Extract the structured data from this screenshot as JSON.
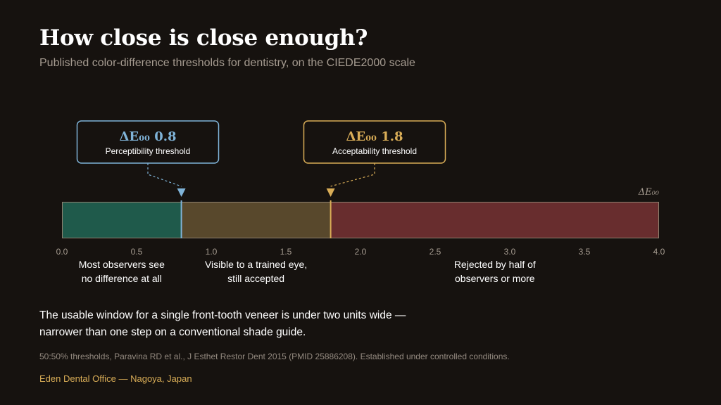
{
  "title": "How close is close enough?",
  "subtitle": "Published color-difference thresholds for dentistry, on the CIEDE2000 scale",
  "chart_data": {
    "type": "bar",
    "orientation": "horizontal-range",
    "axis_label": "ΔE₀₀",
    "xlim": [
      0,
      4
    ],
    "ticks": [
      "0.0",
      "0.5",
      "1.0",
      "1.5",
      "2.0",
      "2.5",
      "3.0",
      "3.5",
      "4.0"
    ],
    "tick_values": [
      0,
      0.5,
      1,
      1.5,
      2,
      2.5,
      3,
      3.5,
      4
    ],
    "bands": [
      {
        "from": 0,
        "to": 0.8,
        "color": "#1f5a4b",
        "label_line1": "Most observers see",
        "label_line2": "no difference at all"
      },
      {
        "from": 0.8,
        "to": 1.8,
        "color": "#58482c",
        "label_line1": "Visible to a trained eye,",
        "label_line2": "still accepted"
      },
      {
        "from": 1.8,
        "to": 4.0,
        "color": "#682d2e",
        "label_line1": "Rejected by half of",
        "label_line2": "observers or more"
      }
    ],
    "thresholds": [
      {
        "value": 0.8,
        "value_label": "ΔE₀₀ 0.8",
        "description": "Perceptibility threshold",
        "color": "#7fb3d8"
      },
      {
        "value": 1.8,
        "value_label": "ΔE₀₀ 1.8",
        "description": "Acceptability threshold",
        "color": "#d9ad57"
      }
    ]
  },
  "takeaway": {
    "line1": "The usable window for a single front-tooth veneer is under two units wide —",
    "line2": "narrower than one step on a conventional shade guide."
  },
  "source": "50:50% thresholds, Paravina RD et al., J Esthet Restor Dent 2015 (PMID 25886208). Established under controlled conditions.",
  "credit": "Eden Dental Office — Nagoya, Japan"
}
